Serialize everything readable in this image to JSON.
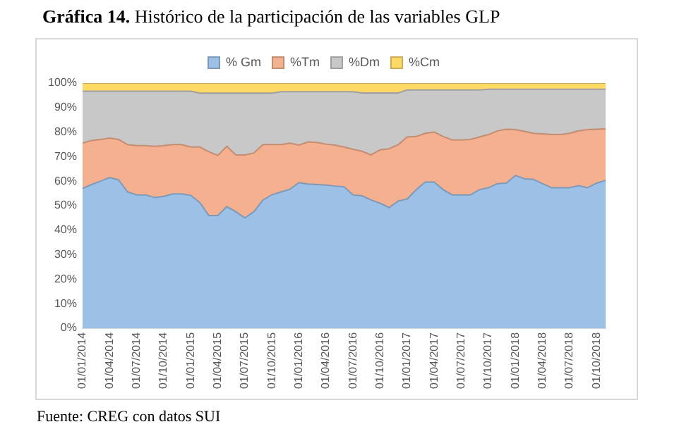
{
  "chart_data": {
    "type": "area",
    "title": "Gráfica 14. Histórico de la participación de las variables GLP",
    "categories": [
      "01/01/2014",
      null,
      null,
      "01/04/2014",
      null,
      null,
      "01/07/2014",
      null,
      null,
      "01/10/2014",
      null,
      null,
      "01/01/2015",
      null,
      null,
      "01/04/2015",
      null,
      null,
      "01/07/2015",
      null,
      null,
      "01/10/2015",
      null,
      null,
      "01/01/2016",
      null,
      null,
      "01/04/2016",
      null,
      null,
      "01/07/2016",
      null,
      null,
      "01/10/2016",
      null,
      null,
      "01/01/2017",
      null,
      null,
      "01/04/2017",
      null,
      null,
      "01/07/2017",
      null,
      null,
      "01/10/2017",
      null,
      null,
      "01/01/2018",
      null,
      null,
      "01/04/2018",
      null,
      null,
      "01/07/2018",
      null,
      null,
      "01/10/2018",
      null
    ],
    "stacked": true,
    "series": [
      {
        "name": "% Gm",
        "color": "#9dc0e6",
        "values": [
          57,
          58.6,
          60,
          61.5,
          60.5,
          55.6,
          54.4,
          54.4,
          53.3,
          53.8,
          54.8,
          54.8,
          54.2,
          51.3,
          46,
          46,
          49.6,
          47.5,
          45,
          47.5,
          52.3,
          54.4,
          55.6,
          56.7,
          59.4,
          58.8,
          58.6,
          58.4,
          58,
          57.7,
          54.4,
          54,
          52.3,
          51,
          49.2,
          51.9,
          52.7,
          56.5,
          59.6,
          59.6,
          56.5,
          54.4,
          54.4,
          54.4,
          56.5,
          57.3,
          59,
          59.2,
          62.3,
          61,
          60.7,
          59,
          57.3,
          57.3,
          57.3,
          58.2,
          57.3,
          59.2,
          60.3
        ]
      },
      {
        "name": "%Tm",
        "color": "#f4b08f",
        "values": [
          18.5,
          18,
          17,
          16.1,
          16.5,
          19.3,
          20.1,
          20.1,
          20.9,
          20.7,
          20.1,
          20.1,
          19.7,
          22.6,
          26,
          24.5,
          24.6,
          23.2,
          25.7,
          24,
          22.6,
          20.5,
          19.3,
          18.8,
          15.3,
          17.2,
          17.2,
          16.7,
          16.7,
          16.2,
          18.6,
          18.2,
          18.4,
          21.8,
          24,
          23,
          25.3,
          21.7,
          19.9,
          20.4,
          21.7,
          22.4,
          22.4,
          22.6,
          21.5,
          21.7,
          21.5,
          22,
          18.7,
          19.3,
          18.8,
          20.3,
          21.7,
          21.7,
          22.2,
          22.3,
          23.7,
          22,
          21.1
        ]
      },
      {
        "name": "%Dm",
        "color": "#c8c8c8",
        "values": [
          21.2,
          20.1,
          19.7,
          19.1,
          19.7,
          21.8,
          22.2,
          22.2,
          22.5,
          22.2,
          21.8,
          21.8,
          22.8,
          22,
          23.9,
          25.4,
          21.7,
          25.2,
          25.2,
          24.4,
          21,
          21,
          21.6,
          21,
          21.8,
          20.5,
          20.7,
          21.4,
          21.8,
          22.6,
          23.5,
          23.8,
          25.3,
          23.2,
          22.8,
          21.1,
          19.2,
          19,
          17.7,
          17.2,
          19,
          20.4,
          20.4,
          20.2,
          19.2,
          18.5,
          17,
          16.3,
          16.5,
          17.2,
          18,
          18.2,
          18.5,
          18.5,
          18,
          17,
          16.5,
          16.3,
          16.1
        ]
      },
      {
        "name": "%Cm",
        "color": "#ffd966",
        "values": [
          3.3,
          3.3,
          3.3,
          3.3,
          3.3,
          3.3,
          3.3,
          3.3,
          3.3,
          3.3,
          3.3,
          3.3,
          3.3,
          4.1,
          4.1,
          4.1,
          4.1,
          4.1,
          4.1,
          4.1,
          4.1,
          4.1,
          3.5,
          3.5,
          3.5,
          3.5,
          3.5,
          3.5,
          3.5,
          3.5,
          3.5,
          4,
          4,
          4,
          4,
          4,
          2.8,
          2.8,
          2.8,
          2.8,
          2.8,
          2.8,
          2.8,
          2.8,
          2.8,
          2.5,
          2.5,
          2.5,
          2.5,
          2.5,
          2.5,
          2.5,
          2.5,
          2.5,
          2.5,
          2.5,
          2.5,
          2.5,
          2.5
        ]
      }
    ],
    "ylim": [
      0,
      100
    ],
    "yticks": [
      {
        "value": 0,
        "label": "0%"
      },
      {
        "value": 10,
        "label": "10%"
      },
      {
        "value": 20,
        "label": "20%"
      },
      {
        "value": 30,
        "label": "30%"
      },
      {
        "value": 40,
        "label": "40%"
      },
      {
        "value": 50,
        "label": "50%"
      },
      {
        "value": 60,
        "label": "60%"
      },
      {
        "value": 70,
        "label": "70%"
      },
      {
        "value": 80,
        "label": "80%"
      },
      {
        "value": 90,
        "label": "90%"
      },
      {
        "value": 100,
        "label": "100%"
      }
    ],
    "legend": "top",
    "annotations": [
      "Fuente: CREG con datos SUI"
    ]
  }
}
